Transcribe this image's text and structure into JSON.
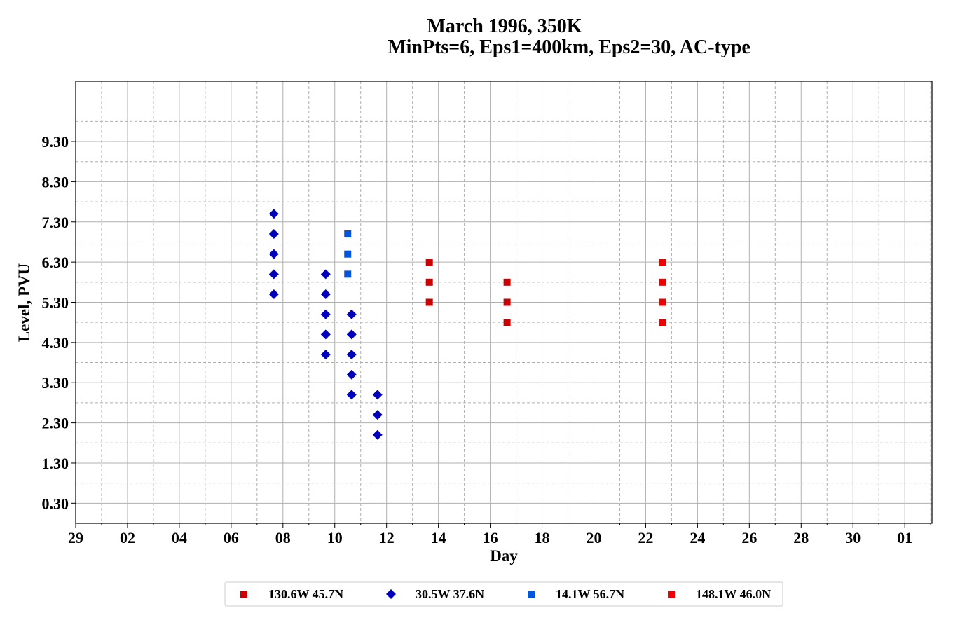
{
  "chart_data": {
    "type": "scatter",
    "title_line1": "March 1996, 350K",
    "title_line2": "MinPts=6, Eps1=400km, Eps2=30, AC-type",
    "xlabel": "Day",
    "ylabel": "Level, PVU",
    "x_unit": "day of March 1996 (values > 31 fall in April)",
    "xlim": [
      29,
      32.0
    ],
    "xlim_note": "axis spans from Feb 29 to just past Apr 1",
    "x_start_day": -0.0,
    "x_axis_days": [
      0,
      32
    ],
    "x_ticks": [
      {
        "day": 0,
        "label": "29"
      },
      {
        "day": 2,
        "label": "02"
      },
      {
        "day": 4,
        "label": "04"
      },
      {
        "day": 6,
        "label": "06"
      },
      {
        "day": 8,
        "label": "08"
      },
      {
        "day": 10,
        "label": "10"
      },
      {
        "day": 12,
        "label": "12"
      },
      {
        "day": 14,
        "label": "14"
      },
      {
        "day": 16,
        "label": "16"
      },
      {
        "day": 18,
        "label": "18"
      },
      {
        "day": 20,
        "label": "20"
      },
      {
        "day": 22,
        "label": "22"
      },
      {
        "day": 24,
        "label": "24"
      },
      {
        "day": 26,
        "label": "26"
      },
      {
        "day": 28,
        "label": "28"
      },
      {
        "day": 30,
        "label": "30"
      },
      {
        "day": 32,
        "label": "01"
      }
    ],
    "ylim": [
      -0.2,
      10.8
    ],
    "y_ticks": [
      "0.30",
      "1.30",
      "2.30",
      "3.30",
      "4.30",
      "5.30",
      "6.30",
      "7.30",
      "8.30",
      "9.30"
    ],
    "y_tick_values": [
      0.3,
      1.3,
      2.3,
      3.3,
      4.3,
      5.3,
      6.3,
      7.3,
      8.3,
      9.3
    ],
    "grid": true,
    "legend_position": "bottom-center",
    "series": [
      {
        "name": "130.6W 45.7N",
        "marker": "square",
        "color": "#cc0000",
        "points": [
          [
            13.65,
            6.3
          ],
          [
            13.65,
            5.8
          ],
          [
            13.65,
            5.3
          ],
          [
            16.65,
            5.8
          ],
          [
            16.65,
            5.3
          ],
          [
            16.65,
            4.8
          ]
        ]
      },
      {
        "name": "30.5W 37.6N",
        "marker": "diamond",
        "color": "#0000bb",
        "points": [
          [
            7.65,
            7.5
          ],
          [
            7.65,
            7.0
          ],
          [
            7.65,
            6.5
          ],
          [
            7.65,
            6.0
          ],
          [
            7.65,
            5.5
          ],
          [
            9.65,
            6.0
          ],
          [
            9.65,
            5.5
          ],
          [
            9.65,
            5.0
          ],
          [
            9.65,
            4.5
          ],
          [
            9.65,
            4.0
          ],
          [
            10.65,
            5.0
          ],
          [
            10.65,
            4.5
          ],
          [
            10.65,
            4.0
          ],
          [
            10.65,
            3.5
          ],
          [
            10.65,
            3.0
          ],
          [
            11.65,
            3.0
          ],
          [
            11.65,
            2.5
          ],
          [
            11.65,
            2.0
          ]
        ]
      },
      {
        "name": "14.1W 56.7N",
        "marker": "square",
        "color": "#0055dd",
        "points": [
          [
            10.5,
            7.0
          ],
          [
            10.5,
            6.5
          ],
          [
            10.5,
            6.0
          ]
        ]
      },
      {
        "name": "148.1W 46.0N",
        "marker": "square",
        "color": "#ee0000",
        "points": [
          [
            22.65,
            6.3
          ],
          [
            22.65,
            5.8
          ],
          [
            22.65,
            5.3
          ],
          [
            22.65,
            4.8
          ]
        ]
      }
    ]
  }
}
